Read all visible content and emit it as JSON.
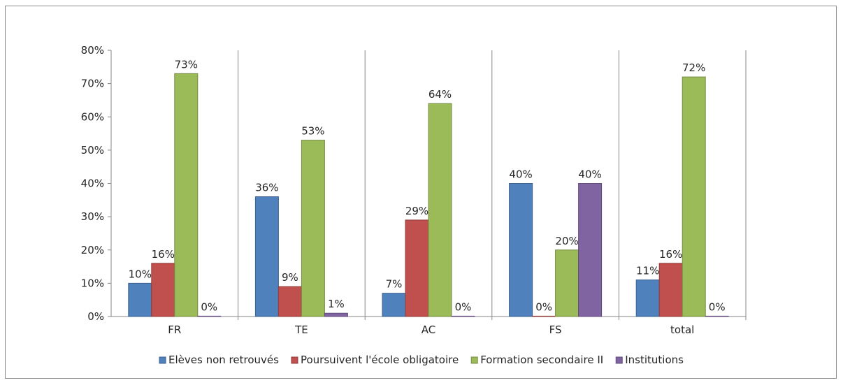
{
  "chart_data": {
    "type": "bar",
    "categories": [
      "FR",
      "TE",
      "AC",
      "FS",
      "total"
    ],
    "series": [
      {
        "name": "Elèves non retrouvés",
        "color": "#4F81BD",
        "values": [
          10,
          36,
          7,
          40,
          11
        ],
        "labels": [
          "10%",
          "36%",
          "7%",
          "40%",
          "11%"
        ]
      },
      {
        "name": "Poursuivent l'école obligatoire",
        "color": "#C0504D",
        "values": [
          16,
          9,
          29,
          0,
          16
        ],
        "labels": [
          "16%",
          "9%",
          "29%",
          "0%",
          "16%"
        ]
      },
      {
        "name": "Formation secondaire II",
        "color": "#9BBB59",
        "values": [
          73,
          53,
          64,
          20,
          72
        ],
        "labels": [
          "73%",
          "53%",
          "64%",
          "20%",
          "72%"
        ]
      },
      {
        "name": "Institutions",
        "color": "#8064A2",
        "values": [
          0,
          1,
          0,
          40,
          0
        ],
        "labels": [
          "0%",
          "1%",
          "0%",
          "40%",
          "0%"
        ]
      }
    ],
    "y_ticks": [
      "0%",
      "10%",
      "20%",
      "30%",
      "40%",
      "50%",
      "60%",
      "70%",
      "80%"
    ],
    "ylim": [
      0,
      80
    ],
    "legend": "bottom",
    "grid": false,
    "category_separators": true
  }
}
